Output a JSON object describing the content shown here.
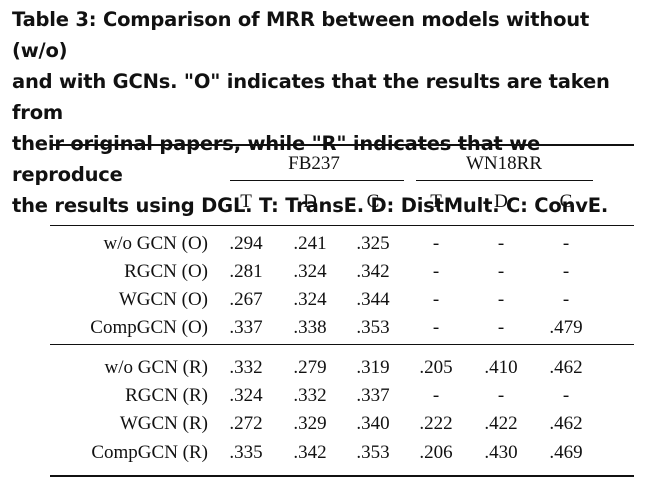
{
  "caption": "Table 3: Comparison of MRR between models without (w/o)\nand with GCNs. \"O\" indicates that the results are taken from\ntheir original papers, while \"R\" indicates that we reproduce\nthe results using DGL. T: TransE. D: DistMult. C: ConvE.",
  "table": {
    "groups": [
      "FB237",
      "WN18RR"
    ],
    "columns": [
      "T",
      "D",
      "C",
      "T",
      "D",
      "C"
    ],
    "section_original": [
      {
        "model": "w/o GCN (O)",
        "values": [
          ".294",
          ".241",
          ".325",
          "-",
          "-",
          "-"
        ]
      },
      {
        "model": "RGCN (O)",
        "values": [
          ".281",
          ".324",
          ".342",
          "-",
          "-",
          "-"
        ]
      },
      {
        "model": "WGCN (O)",
        "values": [
          ".267",
          ".324",
          ".344",
          "-",
          "-",
          "-"
        ]
      },
      {
        "model": "CompGCN (O)",
        "values": [
          ".337",
          ".338",
          ".353",
          "-",
          "-",
          ".479"
        ]
      }
    ],
    "section_reproduced": [
      {
        "model": "w/o GCN (R)",
        "values": [
          ".332",
          ".279",
          ".319",
          ".205",
          ".410",
          ".462"
        ]
      },
      {
        "model": "RGCN (R)",
        "values": [
          ".324",
          ".332",
          ".337",
          "-",
          "-",
          "-"
        ]
      },
      {
        "model": "WGCN (R)",
        "values": [
          ".272",
          ".329",
          ".340",
          ".222",
          ".422",
          ".462"
        ]
      },
      {
        "model": "CompGCN (R)",
        "values": [
          ".335",
          ".342",
          ".353",
          ".206",
          ".430",
          ".469"
        ]
      }
    ]
  }
}
